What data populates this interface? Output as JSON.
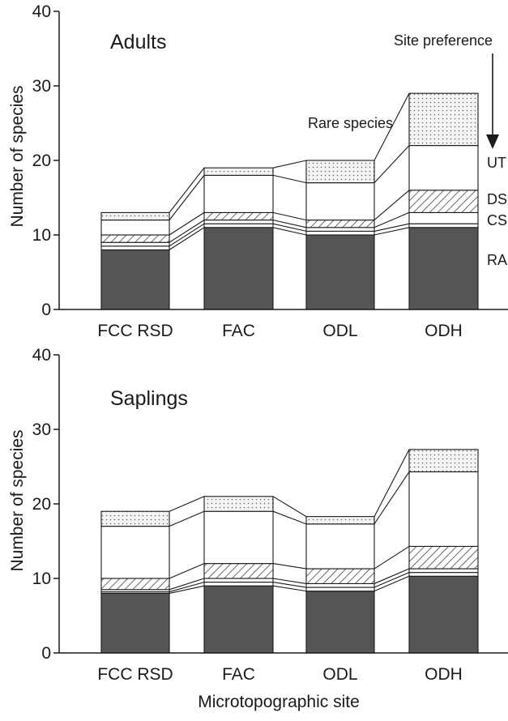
{
  "chart_data": [
    {
      "type": "bar",
      "stacked": true,
      "title": "Adults",
      "xlabel": "",
      "ylabel": "Number of species",
      "ylim": [
        0,
        40
      ],
      "yticks": [
        0,
        10,
        20,
        30,
        40
      ],
      "categories": [
        "FCC RSD",
        "FAC",
        "ODL",
        "ODH"
      ],
      "series": [
        {
          "name": "RA",
          "values": [
            8,
            11,
            10,
            11
          ],
          "fill": "#555555"
        },
        {
          "name": "",
          "values": [
            0.5,
            0.5,
            0.5,
            0.5
          ],
          "fill": "#ffffff"
        },
        {
          "name": "CS",
          "values": [
            0.5,
            0.5,
            0.5,
            1.5
          ],
          "fill": "#ffffff"
        },
        {
          "name": "DS",
          "values": [
            1,
            1,
            1,
            3
          ],
          "fill": "hatch"
        },
        {
          "name": "UT",
          "values": [
            2,
            5,
            5,
            6
          ],
          "fill": "#ffffff"
        },
        {
          "name": "Rare species",
          "values": [
            1,
            1,
            3,
            7
          ],
          "fill": "dots"
        }
      ],
      "annotations": [
        "Rare species",
        "Site preference"
      ],
      "legend_location": "right"
    },
    {
      "type": "bar",
      "stacked": true,
      "title": "Saplings",
      "xlabel": "Microtopographic site",
      "ylabel": "Number of species",
      "ylim": [
        0,
        40
      ],
      "yticks": [
        0,
        10,
        20,
        30,
        40
      ],
      "categories": [
        "FCC RSD",
        "FAC",
        "ODL",
        "ODH"
      ],
      "series": [
        {
          "name": "RA",
          "values": [
            8,
            9,
            8.3,
            10.3
          ],
          "fill": "#555555"
        },
        {
          "name": "",
          "values": [
            0.2,
            0.5,
            0.5,
            0.5
          ],
          "fill": "#ffffff"
        },
        {
          "name": "CS",
          "values": [
            0.3,
            0.5,
            0.5,
            0.5
          ],
          "fill": "#ffffff"
        },
        {
          "name": "DS",
          "values": [
            1.5,
            2,
            2,
            3
          ],
          "fill": "hatch"
        },
        {
          "name": "UT",
          "values": [
            7,
            7,
            6,
            10
          ],
          "fill": "#ffffff"
        },
        {
          "name": "Rare species",
          "values": [
            2,
            2,
            1,
            3
          ],
          "fill": "dots"
        }
      ]
    }
  ]
}
